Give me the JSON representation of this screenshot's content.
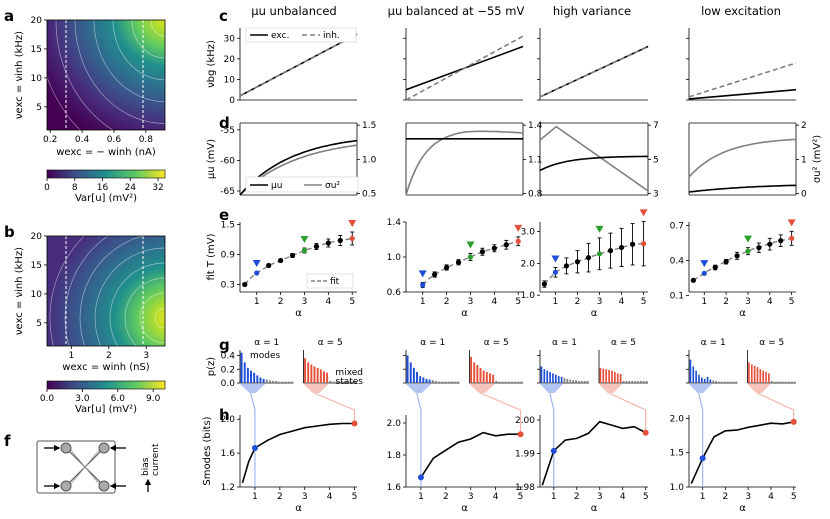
{
  "panel_letters": {
    "a": "a",
    "b": "b",
    "c": "c",
    "d": "d",
    "e": "e",
    "f": "f",
    "g": "g",
    "h": "h"
  },
  "column_titles": [
    "μu unbalanced",
    "μu balanced at −55 mV",
    "high variance",
    "low excitation"
  ],
  "colors": {
    "blue": "#1f4fd8",
    "green": "#2ca02c",
    "red": "#e4503a",
    "black": "#000000",
    "gray": "#808080",
    "viridis": [
      "#440154",
      "#3b528b",
      "#21918c",
      "#5ec962",
      "#fde725"
    ]
  },
  "heatmaps": [
    {
      "panel": "a",
      "ylabel": "νexc = νinh (kHz)",
      "xlabel": "wexc = − winh (nA)",
      "xticks": [
        "0.2",
        "0.4",
        "0.6",
        "0.8"
      ],
      "yticks": [
        "5",
        "10",
        "15",
        "20"
      ],
      "dashed_x": [
        0.33,
        0.71
      ],
      "colorbar_label": "Var[u] (mV²)",
      "colorbar_ticks": [
        "0",
        "8",
        "16",
        "24",
        "32"
      ],
      "contour_levels": [
        4,
        8,
        12,
        16,
        20,
        24,
        28
      ]
    },
    {
      "panel": "b",
      "ylabel": "νexc = νinh (kHz)",
      "xlabel": "wexc = winh (nS)",
      "xticks": [
        "1",
        "2",
        "3"
      ],
      "yticks": [
        "5",
        "10",
        "15",
        "20"
      ],
      "dashed_x": [
        0.85,
        2.6
      ],
      "colorbar_label": "Var[u] (mV²)",
      "colorbar_ticks": [
        "0.0",
        "3.0",
        "6.0",
        "9.0"
      ],
      "contour_levels": [
        1,
        2,
        3,
        4,
        5,
        6,
        7,
        8
      ]
    }
  ],
  "network_panel": {
    "bias_label": "bias\ncurrent",
    "nodes": 4
  },
  "row_c": {
    "ylabel": "νbg (kHz)",
    "legend": [
      "exc.",
      "inh."
    ],
    "ylim": [
      0,
      35
    ],
    "xlim": [
      1,
      5
    ],
    "yticks": [
      0,
      10,
      20,
      30
    ],
    "series": [
      {
        "exc": [
          2,
          32
        ],
        "inh": [
          2,
          32
        ]
      },
      {
        "exc": [
          5,
          26
        ],
        "inh": [
          0,
          31
        ]
      },
      {
        "exc": [
          1.5,
          26
        ],
        "inh": [
          1.5,
          26
        ]
      },
      {
        "exc": [
          0.5,
          5
        ],
        "inh": [
          1.5,
          18
        ]
      }
    ]
  },
  "row_d": {
    "ylabel_left": "μu (mV)",
    "ylabel_right": "σu² (mV²)",
    "legend": [
      "μu",
      "σu²"
    ],
    "left_ylim": [
      -65,
      -53
    ],
    "left_yticks": [
      "-65",
      "-60",
      "-55"
    ],
    "right_ticks": [
      [
        "0.5",
        "1.0",
        "1.5"
      ],
      [
        "0.8",
        "1.1",
        "1.4"
      ],
      [
        "3",
        "5",
        "7"
      ],
      [
        "0",
        "1",
        "2"
      ]
    ]
  },
  "row_e": {
    "ylabel": "fit T (mV)",
    "xlabel": "α",
    "legend": [
      "fit"
    ],
    "xticks": [
      "1",
      "2",
      "3",
      "4",
      "5"
    ],
    "panels": [
      {
        "yticks": [
          "0.3",
          "0.9",
          "1.5"
        ],
        "ylim": [
          0.15,
          1.55
        ],
        "alpha": [
          0.5,
          0.75,
          1.0,
          1.25,
          1.5,
          1.75,
          2.0,
          2.25,
          2.5,
          2.75,
          3.0,
          3.25,
          3.5,
          3.75,
          4.0,
          4.25,
          4.5,
          4.75,
          5.0
        ],
        "T": [
          0.3,
          0.43,
          0.53,
          0.6,
          0.68,
          0.73,
          0.78,
          0.83,
          0.88,
          0.93,
          0.98,
          1.02,
          1.06,
          1.1,
          1.13,
          1.16,
          1.18,
          1.2,
          1.22
        ],
        "err": [
          0.02,
          0.02,
          0.02,
          0.02,
          0.03,
          0.03,
          0.03,
          0.04,
          0.04,
          0.04,
          0.05,
          0.05,
          0.06,
          0.07,
          0.08,
          0.09,
          0.1,
          0.11,
          0.13
        ]
      },
      {
        "yticks": [
          "0.6",
          "1.0",
          "1.4"
        ],
        "ylim": [
          0.6,
          1.4
        ],
        "alpha": [
          1.0,
          1.25,
          1.5,
          1.75,
          2.0,
          2.25,
          2.5,
          2.75,
          3.0,
          3.25,
          3.5,
          3.75,
          4.0,
          4.25,
          4.5,
          4.75,
          5.0
        ],
        "T": [
          0.68,
          0.75,
          0.8,
          0.84,
          0.88,
          0.91,
          0.94,
          0.97,
          1.0,
          1.03,
          1.06,
          1.08,
          1.1,
          1.12,
          1.14,
          1.16,
          1.18
        ],
        "err": [
          0.03,
          0.03,
          0.03,
          0.03,
          0.03,
          0.03,
          0.03,
          0.04,
          0.04,
          0.04,
          0.04,
          0.04,
          0.04,
          0.05,
          0.05,
          0.05,
          0.05
        ]
      },
      {
        "yticks": [
          "1.0",
          "2.0",
          "3.0"
        ],
        "ylim": [
          1.1,
          3.3
        ],
        "alpha": [
          0.5,
          1.0,
          1.5,
          2.0,
          2.5,
          3.0,
          3.5,
          4.0,
          4.5,
          5.0
        ],
        "T": [
          1.35,
          1.72,
          1.92,
          2.05,
          2.18,
          2.3,
          2.4,
          2.5,
          2.6,
          2.62
        ],
        "err": [
          0.1,
          0.15,
          0.25,
          0.35,
          0.45,
          0.5,
          0.55,
          0.6,
          0.65,
          0.7
        ]
      },
      {
        "yticks": [
          "0.1",
          "0.4",
          "0.7"
        ],
        "ylim": [
          0.13,
          0.73
        ],
        "alpha": [
          0.5,
          0.75,
          1.0,
          1.25,
          1.5,
          1.75,
          2.0,
          2.25,
          2.5,
          2.75,
          3.0,
          3.25,
          3.5,
          3.75,
          4.0,
          4.25,
          4.5,
          4.75,
          5.0
        ],
        "T": [
          0.23,
          0.26,
          0.29,
          0.32,
          0.34,
          0.37,
          0.39,
          0.42,
          0.44,
          0.46,
          0.48,
          0.5,
          0.51,
          0.53,
          0.54,
          0.56,
          0.57,
          0.58,
          0.59
        ],
        "err": [
          0.01,
          0.01,
          0.01,
          0.02,
          0.02,
          0.02,
          0.02,
          0.03,
          0.03,
          0.03,
          0.03,
          0.04,
          0.04,
          0.04,
          0.05,
          0.05,
          0.05,
          0.06,
          0.06
        ]
      }
    ],
    "markers": {
      "blue": 1,
      "green": 3,
      "red": 5
    }
  },
  "row_g": {
    "ylabel": "p(z)",
    "yticks": [
      "0.0",
      "0.2",
      "0.4"
    ],
    "titles": [
      "α = 1",
      "α = 5"
    ],
    "legend_modes": "modes",
    "legend_mixed": "mixed\nstates",
    "hist": [
      {
        "a1": [
          0.44,
          0.3,
          0.22,
          0.18,
          0.15,
          0.11,
          0.08,
          0.06,
          0.05,
          0.04,
          0.03,
          0.03,
          0.02,
          0.02,
          0.02,
          0.02,
          0.02
        ],
        "a5": [
          0.36,
          0.3,
          0.27,
          0.24,
          0.22,
          0.2,
          0.17,
          0.15,
          0.03,
          0.02,
          0.02,
          0.02,
          0.02,
          0.02,
          0.02,
          0.02,
          0.02
        ]
      },
      {
        "a1": [
          0.4,
          0.3,
          0.22,
          0.16,
          0.1,
          0.08,
          0.06,
          0.05,
          0.04,
          0.03,
          0.02,
          0.02,
          0.02,
          0.02,
          0.02,
          0.02,
          0.02
        ],
        "a5": [
          0.38,
          0.3,
          0.26,
          0.22,
          0.18,
          0.16,
          0.14,
          0.12,
          0.03,
          0.02,
          0.02,
          0.02,
          0.02,
          0.02,
          0.02,
          0.02,
          0.02
        ]
      },
      {
        "a1": [
          0.24,
          0.2,
          0.18,
          0.16,
          0.14,
          0.12,
          0.1,
          0.09,
          0.07,
          0.06,
          0.05,
          0.04,
          0.04,
          0.03,
          0.03,
          0.03,
          0.03
        ],
        "a5": [
          0.22,
          0.21,
          0.2,
          0.19,
          0.18,
          0.16,
          0.14,
          0.13,
          0.03,
          0.03,
          0.03,
          0.03,
          0.03,
          0.03,
          0.03,
          0.03,
          0.03
        ]
      },
      {
        "a1": [
          0.34,
          0.24,
          0.18,
          0.12,
          0.08,
          0.06,
          0.09,
          0.05,
          0.04,
          0.03,
          0.02,
          0.02,
          0.02,
          0.02,
          0.02,
          0.02,
          0.02
        ],
        "a5": [
          0.3,
          0.27,
          0.25,
          0.23,
          0.2,
          0.18,
          0.16,
          0.14,
          0.03,
          0.02,
          0.02,
          0.02,
          0.02,
          0.02,
          0.02,
          0.02,
          0.02
        ]
      }
    ]
  },
  "row_h": {
    "ylabel": "Smodes (bits)",
    "xlabel": "α",
    "xticks": [
      "1",
      "2",
      "3",
      "4",
      "5"
    ],
    "panels": [
      {
        "yticks": [
          "1.2",
          "1.6",
          "2.0"
        ],
        "ylim": [
          1.2,
          2.05
        ],
        "alpha": [
          0.5,
          0.75,
          1.0,
          1.5,
          2.0,
          2.5,
          3.0,
          3.5,
          4.0,
          4.5,
          5.0
        ],
        "S": [
          1.25,
          1.5,
          1.66,
          1.75,
          1.82,
          1.86,
          1.9,
          1.92,
          1.94,
          1.95,
          1.95
        ]
      },
      {
        "yticks": [
          "1.6",
          "1.8",
          "2.0"
        ],
        "ylim": [
          1.6,
          2.05
        ],
        "alpha": [
          1.0,
          1.5,
          2.0,
          2.5,
          3.0,
          3.5,
          4.0,
          4.5,
          5.0
        ],
        "S": [
          1.66,
          1.78,
          1.83,
          1.88,
          1.9,
          1.94,
          1.92,
          1.93,
          1.93
        ]
      },
      {
        "yticks": [
          "1.98",
          "1.99",
          "2.00"
        ],
        "ylim": [
          1.98,
          2.0015
        ],
        "alpha": [
          0.5,
          1.0,
          1.5,
          2.0,
          2.5,
          3.0,
          3.5,
          4.0,
          4.5,
          5.0
        ],
        "S": [
          1.9805,
          1.9908,
          1.994,
          1.9945,
          1.996,
          1.9995,
          1.9985,
          1.9975,
          1.998,
          1.9962
        ]
      },
      {
        "yticks": [
          "1.0",
          "1.5",
          "2.0"
        ],
        "ylim": [
          1.0,
          2.05
        ],
        "alpha": [
          0.5,
          1.0,
          1.5,
          2.0,
          2.5,
          3.0,
          3.5,
          4.0,
          4.5,
          5.0
        ],
        "S": [
          1.05,
          1.42,
          1.73,
          1.82,
          1.83,
          1.87,
          1.9,
          1.93,
          1.92,
          1.95
        ]
      }
    ]
  }
}
